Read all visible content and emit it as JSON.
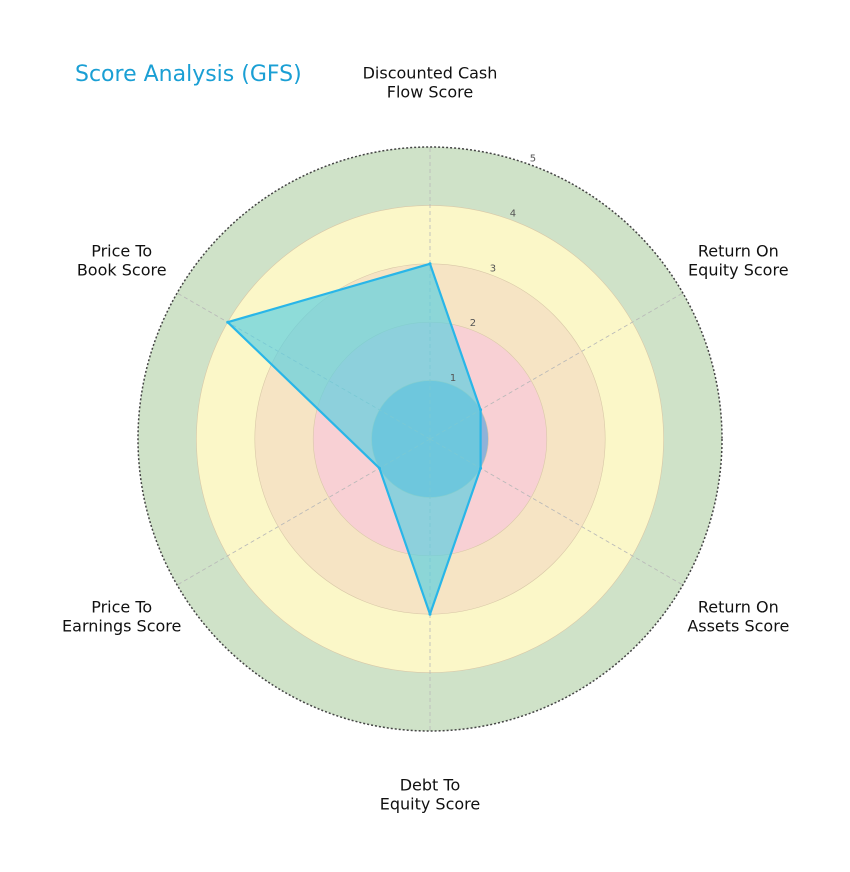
{
  "chart_data": {
    "type": "radar",
    "title": "Score Analysis (GFS)",
    "axes": [
      [
        "Discounted Cash",
        "Flow Score"
      ],
      [
        "Return On",
        "Equity Score"
      ],
      [
        "Return On",
        "Assets Score"
      ],
      [
        "Debt To",
        "Equity Score"
      ],
      [
        "Price To",
        "Earnings Score"
      ],
      [
        "Price To",
        "Book Score"
      ]
    ],
    "values": [
      3,
      1,
      1,
      3,
      1,
      4
    ],
    "rlim": [
      0,
      5
    ],
    "rticks": [
      "1",
      "2",
      "3",
      "4",
      "5"
    ],
    "grid": true,
    "band_colors": [
      "#8fb2d8",
      "#f8d0d4",
      "#f6e4c4",
      "#fbf7c8",
      "#cfe2c8"
    ],
    "series_color": "#29b6e8",
    "fill_color": "#5fd0e0"
  }
}
